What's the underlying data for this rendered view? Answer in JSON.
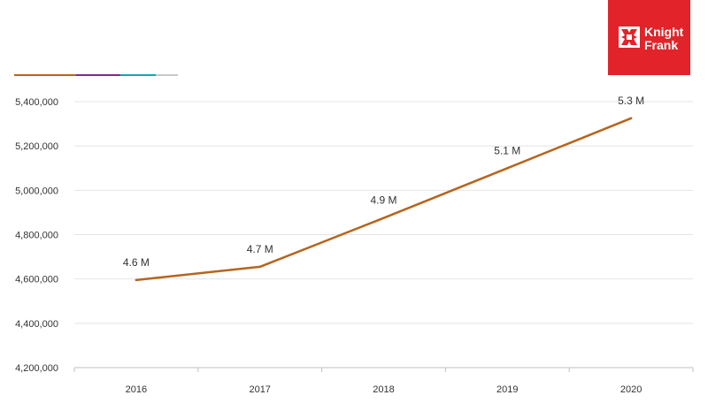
{
  "logo": {
    "line1": "Knight",
    "line2": "Frank",
    "color": "#e2232a"
  },
  "accent_bar_colors": [
    "#b8651a",
    "#7b2d8e",
    "#1aa3b5",
    "#c8c8c8"
  ],
  "chart_data": {
    "type": "line",
    "title": "",
    "xlabel": "",
    "ylabel": "",
    "categories": [
      "2016",
      "2017",
      "2018",
      "2019",
      "2020"
    ],
    "series": [
      {
        "color": "#b5651d",
        "values": [
          4595000,
          4655000,
          4875000,
          5100000,
          5325000
        ],
        "labels": [
          "4.6 M",
          "4.7 M",
          "4.9 M",
          "5.1 M",
          "5.3 M"
        ]
      }
    ],
    "ylim": [
      4200000,
      5400000
    ],
    "yticks": [
      4200000,
      4400000,
      4600000,
      4800000,
      5000000,
      5200000,
      5400000
    ],
    "ytick_labels": [
      "4,200,000",
      "4,400,000",
      "4,600,000",
      "4,800,000",
      "5,000,000",
      "5,200,000",
      "5,400,000"
    ],
    "grid": "horizontal",
    "gridline_color": "#e4e4e4"
  }
}
